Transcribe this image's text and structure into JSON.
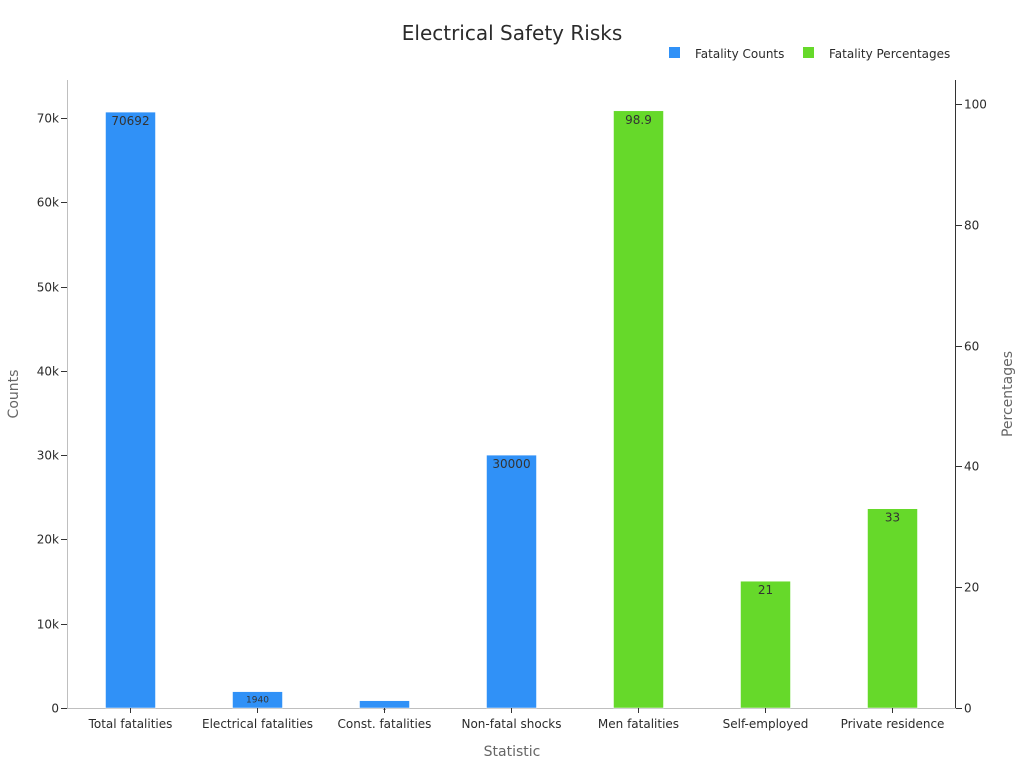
{
  "chart_data": {
    "type": "bar",
    "title": "Electrical Safety Risks",
    "xlabel": "Statistic",
    "ylabel_left": "Counts",
    "ylabel_right": "Percentages",
    "categories": [
      "Total fatalities",
      "Electrical fatalities",
      "Const. fatalities",
      "Non-fatal shocks",
      "Men fatalities",
      "Self-employed",
      "Private residence"
    ],
    "series": [
      {
        "name": "Fatality Counts",
        "axis": "left",
        "color": "#3091f7",
        "values": [
          70692,
          1940,
          869,
          30000,
          null,
          null,
          null
        ],
        "labels": [
          "70692",
          "1940",
          "-",
          "30000",
          "",
          "",
          ""
        ]
      },
      {
        "name": "Fatality Percentages",
        "axis": "right",
        "color": "#66d92a",
        "values": [
          null,
          null,
          null,
          null,
          98.9,
          21,
          33
        ],
        "labels": [
          "",
          "",
          "",
          "",
          "98.9",
          "21",
          "33"
        ]
      }
    ],
    "ylim_left": [
      0,
      74500
    ],
    "yticks_left": [
      0,
      10000,
      20000,
      30000,
      40000,
      50000,
      60000,
      70000
    ],
    "yticklabels_left": [
      "0",
      "10k",
      "20k",
      "30k",
      "40k",
      "50k",
      "60k",
      "70k"
    ],
    "ylim_right": [
      0,
      104
    ],
    "yticks_right": [
      0,
      20,
      40,
      60,
      80,
      100
    ],
    "yticklabels_right": [
      "0",
      "20",
      "40",
      "60",
      "80",
      "100"
    ],
    "legend_position": "top-right",
    "grid": false
  }
}
